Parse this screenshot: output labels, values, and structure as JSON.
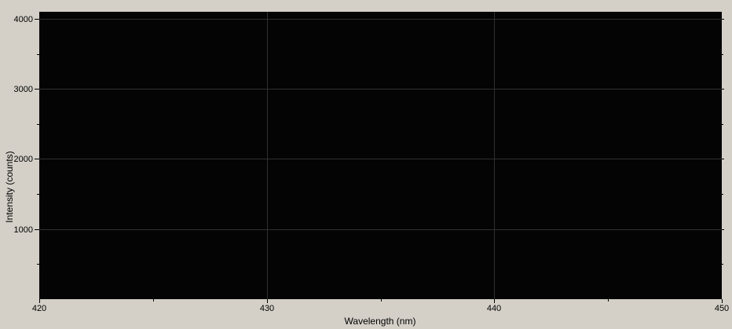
{
  "chart_data": {
    "type": "line",
    "title": "",
    "xlabel": "Wavelength (nm)",
    "ylabel": "Intensity (counts)",
    "xlim": [
      420,
      450
    ],
    "ylim": [
      0,
      4100
    ],
    "x_major_ticks": [
      420,
      430,
      440,
      450
    ],
    "x_minor_ticks": [
      425,
      435,
      445
    ],
    "y_major_ticks": [
      1000,
      2000,
      3000,
      4000
    ],
    "y_minor_ticks": [
      500,
      1500,
      2500,
      3500
    ],
    "grid": true,
    "legend": false,
    "series": [],
    "colors": {
      "page_background": "#d4d0c8",
      "plot_background": "#040404",
      "gridline": "#303030",
      "tick": "#000000",
      "text": "#000000"
    }
  }
}
